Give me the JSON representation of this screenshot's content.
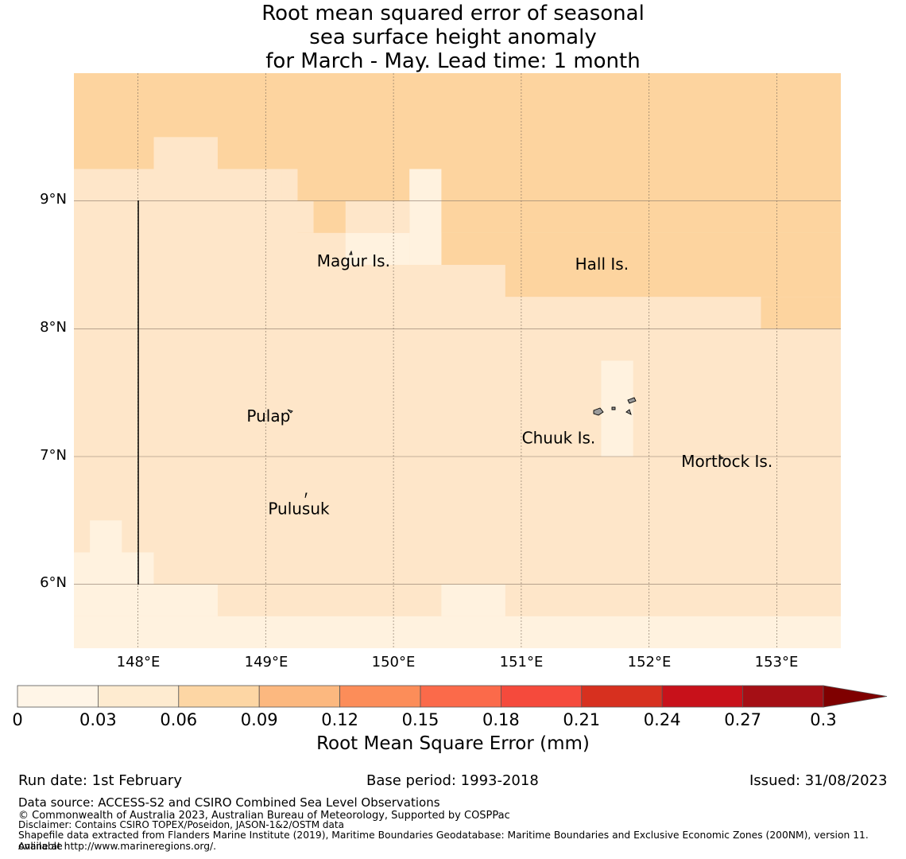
{
  "title": {
    "line1": "Root mean squared error of seasonal",
    "line2": "sea surface height anomaly",
    "line3": "for March - May. Lead time: 1 month"
  },
  "map": {
    "lon_range": [
      147.5,
      153.5
    ],
    "lat_range": [
      5.5,
      10.0
    ],
    "cell_size_deg": 0.25,
    "lat_ticks": [
      "9°N",
      "8°N",
      "7°N",
      "6°N"
    ],
    "lon_ticks": [
      "148°E",
      "149°E",
      "150°E",
      "151°E",
      "152°E",
      "153°E"
    ],
    "colors": {
      "lighter": "#fff2df",
      "light": "#fee6c9",
      "medium": "#fdd49f"
    },
    "islands": [
      {
        "name": "Magur Is.",
        "lon": 149.65,
        "lat": 8.55
      },
      {
        "name": "Hall Is.",
        "lon": 151.85,
        "lat": 8.5
      },
      {
        "name": "Pulap",
        "lon": 149.2,
        "lat": 7.25
      },
      {
        "name": "Chuuk Is.",
        "lon": 151.9,
        "lat": 7.27
      },
      {
        "name": "Mortlock Is.",
        "lon": 152.6,
        "lat": 6.93
      },
      {
        "name": "Pulusuk",
        "lon": 149.33,
        "lat": 6.58
      }
    ]
  },
  "colorbar": {
    "ticks": [
      "0",
      "0.03",
      "0.06",
      "0.09",
      "0.12",
      "0.15",
      "0.18",
      "0.21",
      "0.24",
      "0.27",
      "0.3"
    ],
    "colors": [
      "#fff5e7",
      "#feebd0",
      "#fdd6a4",
      "#fcb87f",
      "#fc8d59",
      "#fb6a4a",
      "#f54a3c",
      "#d7301f",
      "#c8111a",
      "#a50f15",
      "#7f0000"
    ],
    "label": "Root Mean Square Error (mm)"
  },
  "footer": {
    "run_date": "Run date: 1st February",
    "base_period": "Base period: 1993-2018",
    "issued": "Issued: 31/08/2023",
    "data_source": "Data source: ACCESS-S2 and CSIRO Combined Sea Level Observations",
    "copyright": "© Commonwealth of Australia 2023, Australian Bureau of Meteorology, Supported by COSPPac",
    "disclaimer": "Disclaimer: Contains CSIRO TOPEX/Poseidon, JASON-1&2/OSTM data",
    "shapefile_line1": "Shapefile data extracted from Flanders Marine Institute (2019), Maritime Boundaries Geodatabase: Maritime Boundaries and Exclusive Economic Zones (200NM), version 11. Available",
    "shapefile_line2": "online at http://www.marineregions.org/."
  }
}
